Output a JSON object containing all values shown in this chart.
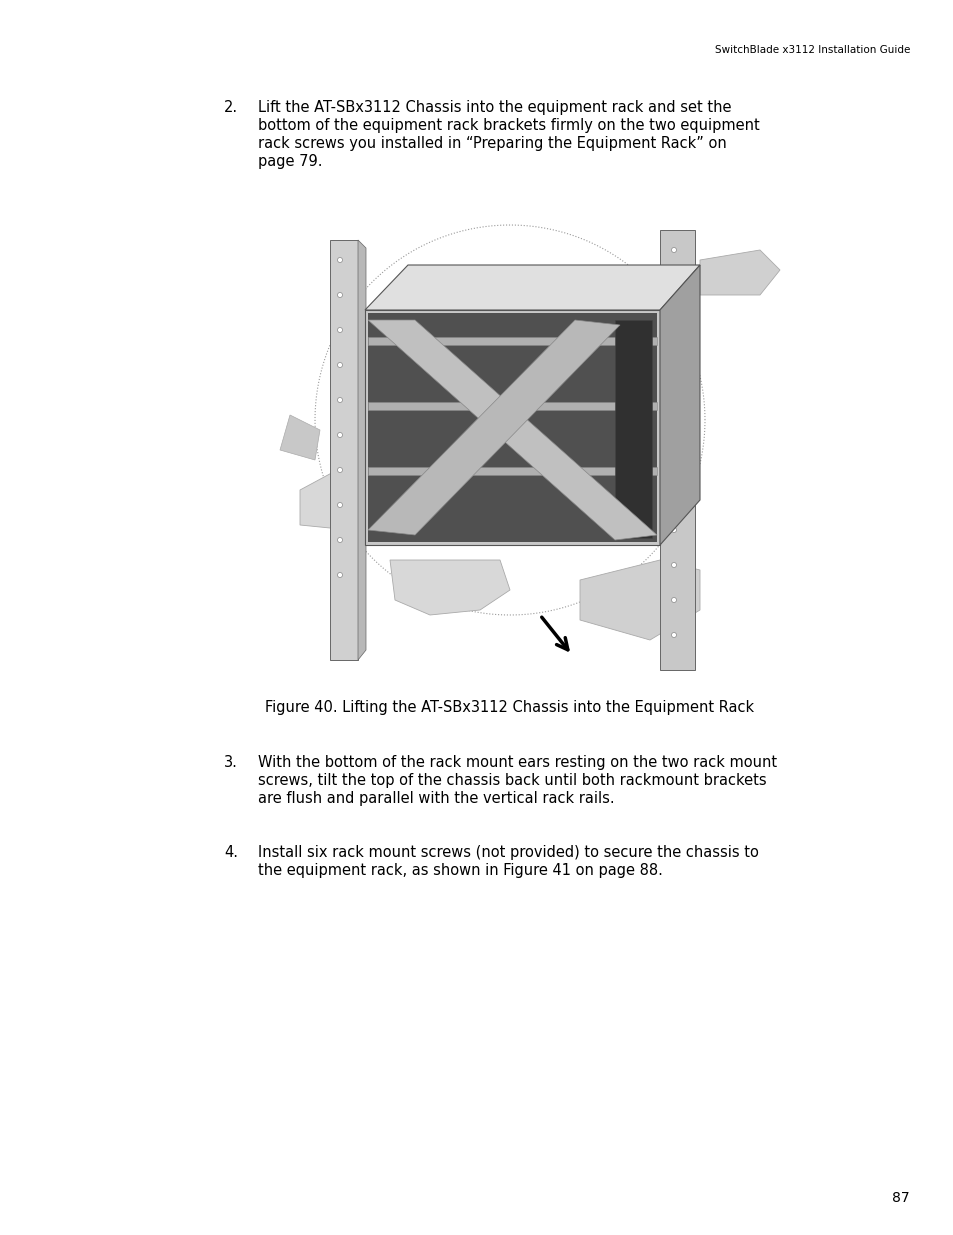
{
  "header_text": "SwitchBlade x3112 Installation Guide",
  "header_fontsize": 7.5,
  "item2_number": "2.",
  "item2_text_line1": "Lift the AT-SBx3112 Chassis into the equipment rack and set the",
  "item2_text_line2": "bottom of the equipment rack brackets firmly on the two equipment",
  "item2_text_line3": "rack screws you installed in “Preparing the Equipment Rack” on",
  "item2_text_line4": "page 79.",
  "body_fontsize": 10.5,
  "figure_caption": "Figure 40. Lifting the AT-SBx3112 Chassis into the Equipment Rack",
  "figure_caption_fontsize": 10.5,
  "item3_number": "3.",
  "item3_text_line1": "With the bottom of the rack mount ears resting on the two rack mount",
  "item3_text_line2": "screws, tilt the top of the chassis back until both rackmount brackets",
  "item3_text_line3": "are flush and parallel with the vertical rack rails.",
  "item4_number": "4.",
  "item4_text_line1": "Install six rack mount screws (not provided) to secure the chassis to",
  "item4_text_line2": "the equipment rack, as shown in Figure 41 on page 88.",
  "page_number": "87",
  "page_number_fontsize": 10,
  "bg_color": "#ffffff",
  "text_color": "#000000"
}
